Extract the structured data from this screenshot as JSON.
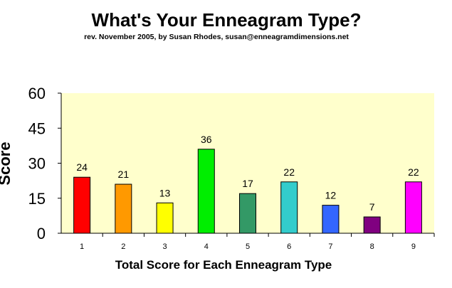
{
  "chart_data": {
    "type": "bar",
    "title": "What's Your Enneagram Type?",
    "subtitle": "rev. November 2005, by Susan Rhodes, susan@enneagramdimensions.net",
    "xlabel": "Total Score for Each Enneagram Type",
    "ylabel": "Score",
    "categories": [
      "1",
      "2",
      "3",
      "4",
      "5",
      "6",
      "7",
      "8",
      "9"
    ],
    "values": [
      24,
      21,
      13,
      36,
      17,
      22,
      12,
      7,
      22
    ],
    "data_labels": [
      "24",
      "21",
      "13",
      "36",
      "17",
      "22",
      "12",
      "7",
      "22"
    ],
    "ylim": [
      0,
      60
    ],
    "yticks": [
      "0",
      "15",
      "30",
      "45",
      "60"
    ],
    "colors": [
      "#ff0000",
      "#ff9900",
      "#ffff00",
      "#00ee00",
      "#339966",
      "#33cccc",
      "#3366ff",
      "#800080",
      "#ff00ff"
    ],
    "plot_background": "#ffffcc",
    "grid": false,
    "legend": "none"
  }
}
